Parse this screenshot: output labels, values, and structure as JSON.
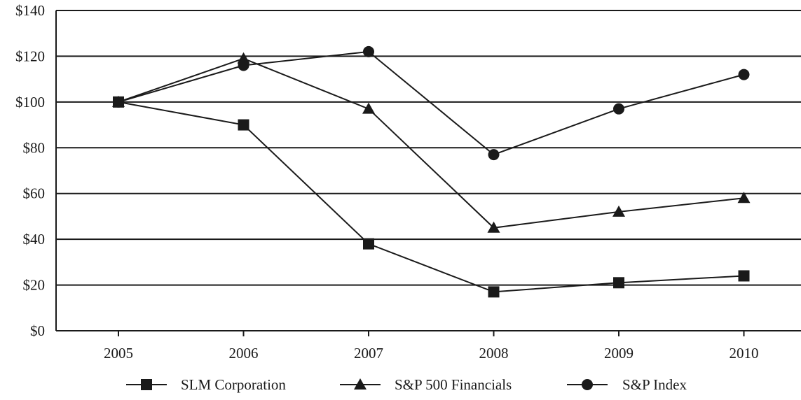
{
  "chart_data": {
    "type": "line",
    "title": "",
    "xlabel": "",
    "ylabel": "",
    "categories": [
      "2005",
      "2006",
      "2007",
      "2008",
      "2009",
      "2010"
    ],
    "ylim": [
      0,
      140
    ],
    "yticks": [
      0,
      20,
      40,
      60,
      80,
      100,
      120,
      140
    ],
    "ytick_labels": [
      "$0",
      "$20",
      "$40",
      "$60",
      "$80",
      "$100",
      "$120",
      "$140"
    ],
    "grid": "horizontal",
    "legend_position": "bottom",
    "series": [
      {
        "name": "SLM Corporation",
        "marker": "square",
        "values": [
          100,
          90,
          38,
          17,
          21,
          24
        ]
      },
      {
        "name": "S&P 500 Financials",
        "marker": "triangle",
        "values": [
          100,
          119,
          97,
          45,
          52,
          58
        ]
      },
      {
        "name": "S&P Index",
        "marker": "circle",
        "values": [
          100,
          116,
          122,
          77,
          97,
          112
        ]
      }
    ]
  }
}
